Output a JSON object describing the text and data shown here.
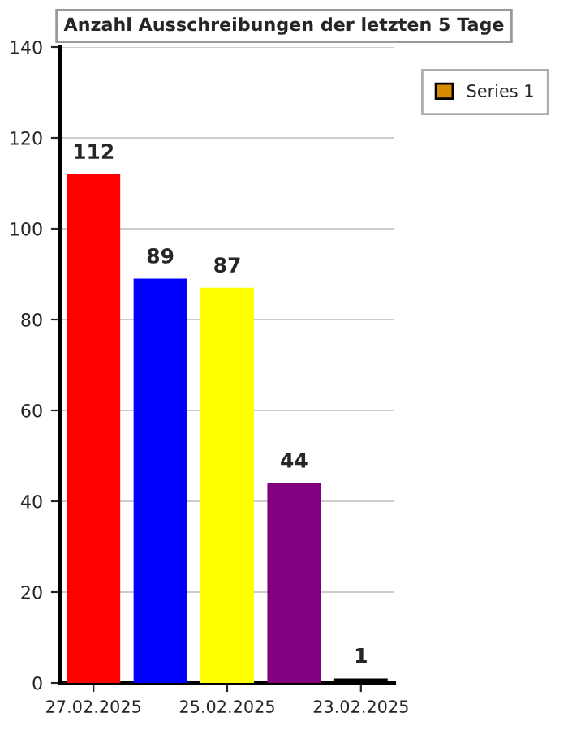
{
  "chart_data": {
    "type": "bar",
    "title": "Anzahl Ausschreibungen der letzten 5 Tage",
    "categories": [
      "27.02.2025",
      null,
      "25.02.2025",
      null,
      "23.02.2025"
    ],
    "series": [
      {
        "name": "Series 1",
        "color": "#d98b00",
        "values": [
          112,
          89,
          87,
          44,
          1
        ],
        "colors": [
          "#ff0000",
          "#0000ff",
          "#ffff00",
          "#800080",
          "#000000"
        ]
      }
    ],
    "ylim": [
      0,
      140
    ],
    "yticks": [
      0,
      20,
      40,
      60,
      80,
      100,
      120,
      140
    ],
    "grid": "y",
    "legend": "top right",
    "data_labels": true
  }
}
